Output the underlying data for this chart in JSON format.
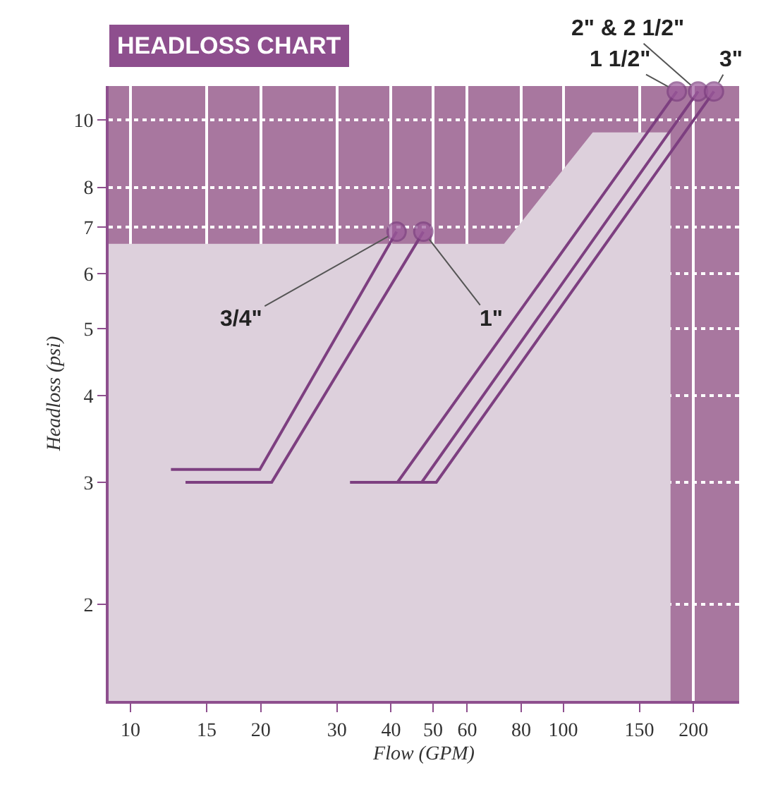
{
  "chart_data": {
    "type": "line",
    "title": "HEADLOSS CHART",
    "xlabel": "Flow (GPM)",
    "ylabel": "Headloss (psi)",
    "log": "xy",
    "grid": true,
    "legend": false,
    "line_style": "solid",
    "bands": [
      {
        "axis": "y",
        "from": 1.45,
        "to": 11.2,
        "color": "#a8779f"
      }
    ],
    "xlim": [
      8.9,
      255
    ],
    "xticks": [
      10,
      15,
      20,
      30,
      40,
      50,
      60,
      80,
      100,
      150,
      200
    ],
    "ylim": [
      1.45,
      11.2
    ],
    "yticks": [
      2,
      3,
      4,
      5,
      6,
      7,
      8,
      10
    ],
    "series": [
      {
        "type": "area",
        "color": "#ddd0dc",
        "x": [
          8.9,
          73,
          117,
          177
        ],
        "values": [
          6.63,
          6.63,
          9.6,
          9.6
        ]
      },
      {
        "name": "3/4\"",
        "color": "#7d3f80",
        "x": [
          12.4,
          19.9,
          41.2
        ],
        "values": [
          3.13,
          3.13,
          6.9
        ]
      },
      {
        "name": "1\"",
        "color": "#7d3f80",
        "x": [
          13.4,
          21.2,
          47.5
        ],
        "values": [
          3.0,
          3.0,
          6.9
        ]
      },
      {
        "name": "1 1/2\"",
        "color": "#7d3f80",
        "x": [
          32.2,
          41.4,
          183
        ],
        "values": [
          3.0,
          3.0,
          11.0
        ]
      },
      {
        "name": "2\" & 2 1/2\"",
        "color": "#7d3f80",
        "x": [
          32.2,
          47.1,
          205
        ],
        "values": [
          3.0,
          3.0,
          11.0
        ]
      },
      {
        "name": "3\"",
        "color": "#7d3f80",
        "x": [
          32.2,
          50.9,
          223
        ],
        "values": [
          3.0,
          3.0,
          11.0
        ]
      }
    ]
  }
}
